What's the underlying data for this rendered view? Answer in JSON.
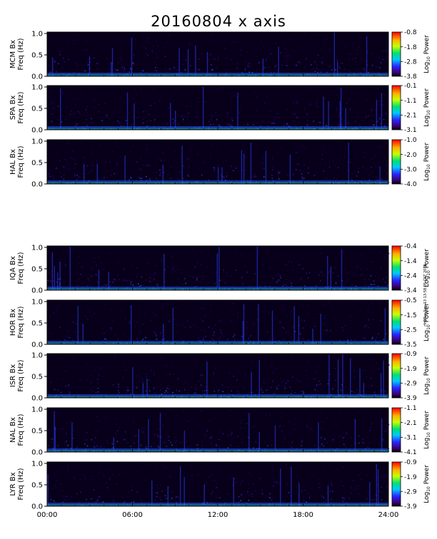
{
  "title": "20160804 x axis",
  "side_note": "rfm Tue Sep 13 13:58:05 CST 2016",
  "x_ticks": [
    "00:00",
    "06:00",
    "12:00",
    "18:00",
    "24:00"
  ],
  "x_tick_hours": [
    0,
    6,
    12,
    18,
    24
  ],
  "colorbar_label_main": "Log",
  "colorbar_label_sub": "10",
  "colorbar_label_tail": " Power",
  "chart_data": [
    {
      "type": "heatmap",
      "station": "MCM",
      "ylabel_top": "MCM Bx",
      "ylabel_bottom": "Freq (Hz)",
      "yticks": [
        "0.0",
        "0.5",
        "1.0"
      ],
      "ylim": [
        0,
        1.0
      ],
      "xlim_hours": [
        0,
        24
      ],
      "colorbar_ticks": [
        "-0.8",
        "-1.8",
        "-2.8",
        "-3.8"
      ],
      "colorbar_range": [
        -3.8,
        -0.8
      ]
    },
    {
      "type": "heatmap",
      "station": "SPA",
      "ylabel_top": "SPA Bx",
      "ylabel_bottom": "Freq (Hz)",
      "yticks": [
        "0.0",
        "0.5",
        "1.0"
      ],
      "ylim": [
        0,
        1.0
      ],
      "xlim_hours": [
        0,
        24
      ],
      "colorbar_ticks": [
        "-0.1",
        "-1.1",
        "-2.1",
        "-3.1"
      ],
      "colorbar_range": [
        -3.1,
        -0.1
      ]
    },
    {
      "type": "heatmap",
      "station": "HAL",
      "ylabel_top": "HAL Bx",
      "ylabel_bottom": "Freq (Hz)",
      "yticks": [
        "0.0",
        "0.5",
        "1.0"
      ],
      "ylim": [
        0,
        1.0
      ],
      "xlim_hours": [
        0,
        24
      ],
      "colorbar_ticks": [
        "-1.0",
        "-2.0",
        "-3.0",
        "-4.0"
      ],
      "colorbar_range": [
        -4.0,
        -1.0
      ]
    },
    {
      "type": "heatmap",
      "station": "IQA",
      "ylabel_top": "IQA Bx",
      "ylabel_bottom": "Freq (Hz)",
      "yticks": [
        "0.0",
        "0.5",
        "1.0"
      ],
      "ylim": [
        0,
        1.0
      ],
      "xlim_hours": [
        0,
        24
      ],
      "colorbar_ticks": [
        "-0.4",
        "-1.4",
        "-2.4",
        "-3.4"
      ],
      "colorbar_range": [
        -3.4,
        -0.4
      ]
    },
    {
      "type": "heatmap",
      "station": "HOR",
      "ylabel_top": "HOR Bx",
      "ylabel_bottom": "Freq (Hz)",
      "yticks": [
        "0.0",
        "0.5",
        "1.0"
      ],
      "ylim": [
        0,
        1.0
      ],
      "xlim_hours": [
        0,
        24
      ],
      "colorbar_ticks": [
        "-0.5",
        "-1.5",
        "-2.5",
        "-3.5"
      ],
      "colorbar_range": [
        -3.5,
        -0.5
      ]
    },
    {
      "type": "heatmap",
      "station": "ISR",
      "ylabel_top": "ISR Bx",
      "ylabel_bottom": "Freq (Hz)",
      "yticks": [
        "0.0",
        "0.5",
        "1.0"
      ],
      "ylim": [
        0,
        1.0
      ],
      "xlim_hours": [
        0,
        24
      ],
      "colorbar_ticks": [
        "-0.9",
        "-1.9",
        "-2.9",
        "-3.9"
      ],
      "colorbar_range": [
        -3.9,
        -0.9
      ]
    },
    {
      "type": "heatmap",
      "station": "NAL",
      "ylabel_top": "NAL Bx",
      "ylabel_bottom": "Freq (Hz)",
      "yticks": [
        "0.0",
        "0.5",
        "1.0"
      ],
      "ylim": [
        0,
        1.0
      ],
      "xlim_hours": [
        0,
        24
      ],
      "colorbar_ticks": [
        "-1.1",
        "-2.1",
        "-3.1",
        "-4.1"
      ],
      "colorbar_range": [
        -4.1,
        -1.1
      ]
    },
    {
      "type": "heatmap",
      "station": "LYR",
      "ylabel_top": "LYR Bx",
      "ylabel_bottom": "Freq (Hz)",
      "yticks": [
        "0.0",
        "0.5",
        "1.0"
      ],
      "ylim": [
        0,
        1.0
      ],
      "xlim_hours": [
        0,
        24
      ],
      "colorbar_ticks": [
        "-0.9",
        "-1.9",
        "-2.9",
        "-3.9"
      ],
      "colorbar_range": [
        -3.9,
        -0.9
      ]
    }
  ]
}
